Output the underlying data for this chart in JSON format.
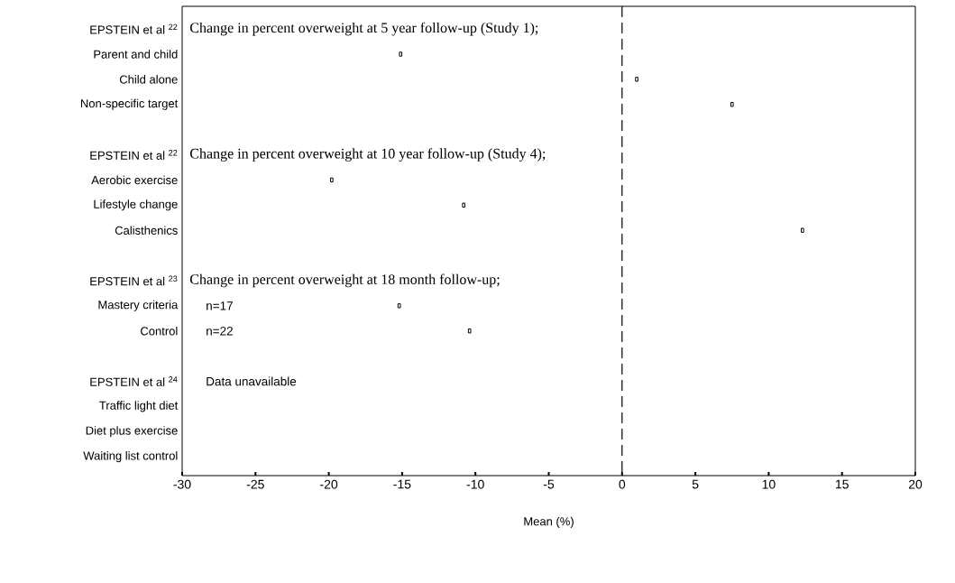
{
  "chart_data": {
    "type": "scatter",
    "orientation": "horizontal",
    "xlabel": "Mean (%)",
    "categories": [
      "EPSTEIN et al $^{22}$",
      "Parent and child",
      "Child alone",
      "Non-specific target",
      null,
      "EPSTEIN et al $^{22}$",
      "Aerobic exercise",
      "Lifestyle change",
      "Calisthenics",
      null,
      "EPSTEIN et al $^{23}$",
      "Mastery criteria",
      "Control",
      null,
      "EPSTEIN et al $^{24}$",
      "Traffic light diet",
      "Diet plus exercise",
      "Waiting list control"
    ],
    "values": [
      null,
      -15.1,
      1.0,
      7.5,
      null,
      null,
      -19.8,
      -10.8,
      12.3,
      null,
      null,
      -15.2,
      -10.4,
      null,
      null,
      null,
      null,
      null
    ],
    "color": "#000000",
    "marker": "square",
    "grid": false,
    "xlim": [
      -30,
      20
    ],
    "xticks": [
      -30,
      -25,
      -20,
      -15,
      -10,
      -5,
      0,
      5,
      10,
      15,
      20
    ],
    "ref_lines": [
      {
        "axis": "x",
        "value": 0,
        "line_style": "dashed",
        "color": "#000000"
      }
    ],
    "annotations": [
      "Change in percent overweight at 5 year follow-up (Study 1);",
      "Change in percent overweight at 10 year follow-up (Study 4);",
      "Change in percent overweight at 18 month follow-up;",
      "n=17",
      "n=22",
      "Data unavailable"
    ]
  }
}
